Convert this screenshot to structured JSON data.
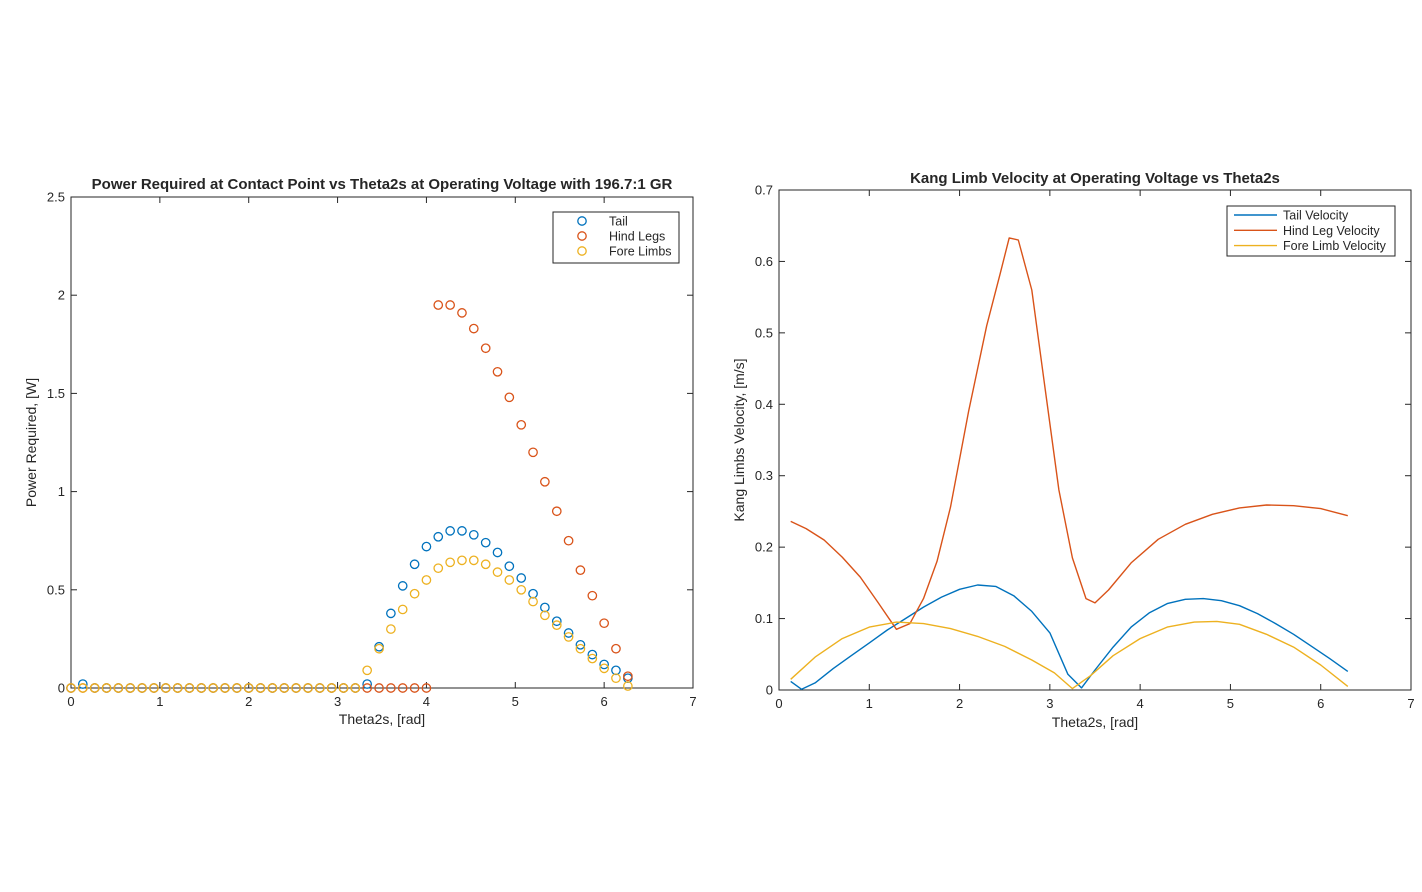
{
  "chart_data": [
    {
      "type": "scatter",
      "title": "Power Required at Contact Point vs Theta2s at Operating Voltage with 196.7:1 GR",
      "xlabel": "Theta2s, [rad]",
      "ylabel": "Power Required, [W]",
      "xlim": [
        0,
        7
      ],
      "ylim": [
        0,
        2.5
      ],
      "xticks": [
        0,
        1,
        2,
        3,
        4,
        5,
        6,
        7
      ],
      "yticks": [
        0,
        0.5,
        1,
        1.5,
        2,
        2.5
      ],
      "legend": "top-right",
      "grid": false,
      "series": [
        {
          "name": "Tail",
          "color": "#0072BD",
          "x": [
            0,
            0.133,
            0.267,
            0.4,
            0.533,
            0.667,
            0.8,
            0.933,
            1.067,
            1.2,
            1.333,
            1.467,
            1.6,
            1.733,
            1.867,
            2.0,
            2.133,
            2.267,
            2.4,
            2.533,
            2.667,
            2.8,
            2.933,
            3.067,
            3.2,
            3.333,
            3.467,
            3.6,
            3.733,
            3.867,
            4.0,
            4.133,
            4.267,
            4.4,
            4.533,
            4.667,
            4.8,
            4.933,
            5.067,
            5.2,
            5.333,
            5.467,
            5.6,
            5.733,
            5.867,
            6.0,
            6.133,
            6.267
          ],
          "y": [
            0,
            0.02,
            0,
            0,
            0,
            0,
            0,
            0,
            0,
            0,
            0,
            0,
            0,
            0,
            0,
            0,
            0,
            0,
            0,
            0,
            0,
            0,
            0,
            0,
            0,
            0.02,
            0.21,
            0.38,
            0.52,
            0.63,
            0.72,
            0.77,
            0.8,
            0.8,
            0.78,
            0.74,
            0.69,
            0.62,
            0.56,
            0.48,
            0.41,
            0.34,
            0.28,
            0.22,
            0.17,
            0.12,
            0.09,
            0.05
          ]
        },
        {
          "name": "Hind Legs",
          "color": "#D95319",
          "x": [
            0,
            0.133,
            0.267,
            0.4,
            0.533,
            0.667,
            0.8,
            0.933,
            1.067,
            1.2,
            1.333,
            1.467,
            1.6,
            1.733,
            1.867,
            2.0,
            2.133,
            2.267,
            2.4,
            2.533,
            2.667,
            2.8,
            2.933,
            3.067,
            3.2,
            3.333,
            3.467,
            3.6,
            3.733,
            3.867,
            4.0,
            4.133,
            4.267,
            4.4,
            4.533,
            4.667,
            4.8,
            4.933,
            5.067,
            5.2,
            5.333,
            5.467,
            5.6,
            5.733,
            5.867,
            6.0,
            6.133,
            6.267
          ],
          "y": [
            0,
            0,
            0,
            0,
            0,
            0,
            0,
            0,
            0,
            0,
            0,
            0,
            0,
            0,
            0,
            0,
            0,
            0,
            0,
            0,
            0,
            0,
            0,
            0,
            0,
            0,
            0,
            0,
            0,
            0,
            0,
            1.95,
            1.95,
            1.91,
            1.83,
            1.73,
            1.61,
            1.48,
            1.34,
            1.2,
            1.05,
            0.9,
            0.75,
            0.6,
            0.47,
            0.33,
            0.2,
            0.06
          ]
        },
        {
          "name": "Fore Limbs",
          "color": "#EDB120",
          "x": [
            0,
            0.133,
            0.267,
            0.4,
            0.533,
            0.667,
            0.8,
            0.933,
            1.067,
            1.2,
            1.333,
            1.467,
            1.6,
            1.733,
            1.867,
            2.0,
            2.133,
            2.267,
            2.4,
            2.533,
            2.667,
            2.8,
            2.933,
            3.067,
            3.2,
            3.333,
            3.467,
            3.6,
            3.733,
            3.867,
            4.0,
            4.133,
            4.267,
            4.4,
            4.533,
            4.667,
            4.8,
            4.933,
            5.067,
            5.2,
            5.333,
            5.467,
            5.6,
            5.733,
            5.867,
            6.0,
            6.133,
            6.267
          ],
          "y": [
            0,
            0,
            0,
            0,
            0,
            0,
            0,
            0,
            0,
            0,
            0,
            0,
            0,
            0,
            0,
            0,
            0,
            0,
            0,
            0,
            0,
            0,
            0,
            0,
            0,
            0.09,
            0.2,
            0.3,
            0.4,
            0.48,
            0.55,
            0.61,
            0.64,
            0.65,
            0.65,
            0.63,
            0.59,
            0.55,
            0.5,
            0.44,
            0.37,
            0.32,
            0.26,
            0.2,
            0.15,
            0.1,
            0.05,
            0.01
          ]
        }
      ]
    },
    {
      "type": "line",
      "title": "Kang Limb Velocity at Operating Voltage vs Theta2s",
      "xlabel": "Theta2s, [rad]",
      "ylabel": "Kang Limbs Velocity, [m/s]",
      "xlim": [
        0,
        7
      ],
      "ylim": [
        0,
        0.7
      ],
      "xticks": [
        0,
        1,
        2,
        3,
        4,
        5,
        6,
        7
      ],
      "yticks": [
        0,
        0.1,
        0.2,
        0.3,
        0.4,
        0.5,
        0.6,
        0.7
      ],
      "legend": "top-right",
      "grid": false,
      "series": [
        {
          "name": "Tail Velocity",
          "color": "#0072BD",
          "x": [
            0.13,
            0.25,
            0.4,
            0.6,
            0.8,
            1.0,
            1.2,
            1.4,
            1.6,
            1.8,
            2.0,
            2.2,
            2.4,
            2.6,
            2.8,
            3.0,
            3.2,
            3.35,
            3.5,
            3.7,
            3.9,
            4.1,
            4.3,
            4.5,
            4.7,
            4.9,
            5.1,
            5.3,
            5.5,
            5.7,
            5.9,
            6.1,
            6.3
          ],
          "y": [
            0.012,
            0.001,
            0.01,
            0.03,
            0.048,
            0.066,
            0.084,
            0.1,
            0.116,
            0.13,
            0.141,
            0.147,
            0.145,
            0.132,
            0.11,
            0.08,
            0.022,
            0.003,
            0.028,
            0.06,
            0.088,
            0.108,
            0.121,
            0.127,
            0.128,
            0.125,
            0.118,
            0.107,
            0.093,
            0.078,
            0.061,
            0.044,
            0.026
          ]
        },
        {
          "name": "Hind Leg Velocity",
          "color": "#D95319",
          "x": [
            0.13,
            0.3,
            0.5,
            0.7,
            0.9,
            1.1,
            1.3,
            1.45,
            1.6,
            1.75,
            1.9,
            2.1,
            2.3,
            2.45,
            2.55,
            2.65,
            2.8,
            2.95,
            3.1,
            3.25,
            3.4,
            3.5,
            3.65,
            3.9,
            4.2,
            4.5,
            4.8,
            5.1,
            5.4,
            5.7,
            6.0,
            6.3
          ],
          "y": [
            0.236,
            0.226,
            0.21,
            0.186,
            0.158,
            0.122,
            0.085,
            0.093,
            0.128,
            0.18,
            0.256,
            0.39,
            0.51,
            0.583,
            0.633,
            0.63,
            0.56,
            0.42,
            0.28,
            0.185,
            0.128,
            0.122,
            0.14,
            0.178,
            0.211,
            0.232,
            0.246,
            0.255,
            0.259,
            0.258,
            0.254,
            0.244
          ]
        },
        {
          "name": "Fore Limb Velocity",
          "color": "#EDB120",
          "x": [
            0.13,
            0.4,
            0.7,
            1.0,
            1.3,
            1.6,
            1.9,
            2.2,
            2.5,
            2.8,
            3.05,
            3.25,
            3.45,
            3.7,
            4.0,
            4.3,
            4.6,
            4.85,
            5.1,
            5.4,
            5.7,
            6.0,
            6.3
          ],
          "y": [
            0.015,
            0.046,
            0.072,
            0.088,
            0.095,
            0.093,
            0.086,
            0.075,
            0.061,
            0.042,
            0.024,
            0.002,
            0.02,
            0.048,
            0.072,
            0.088,
            0.095,
            0.096,
            0.092,
            0.078,
            0.06,
            0.035,
            0.005
          ]
        }
      ]
    }
  ]
}
